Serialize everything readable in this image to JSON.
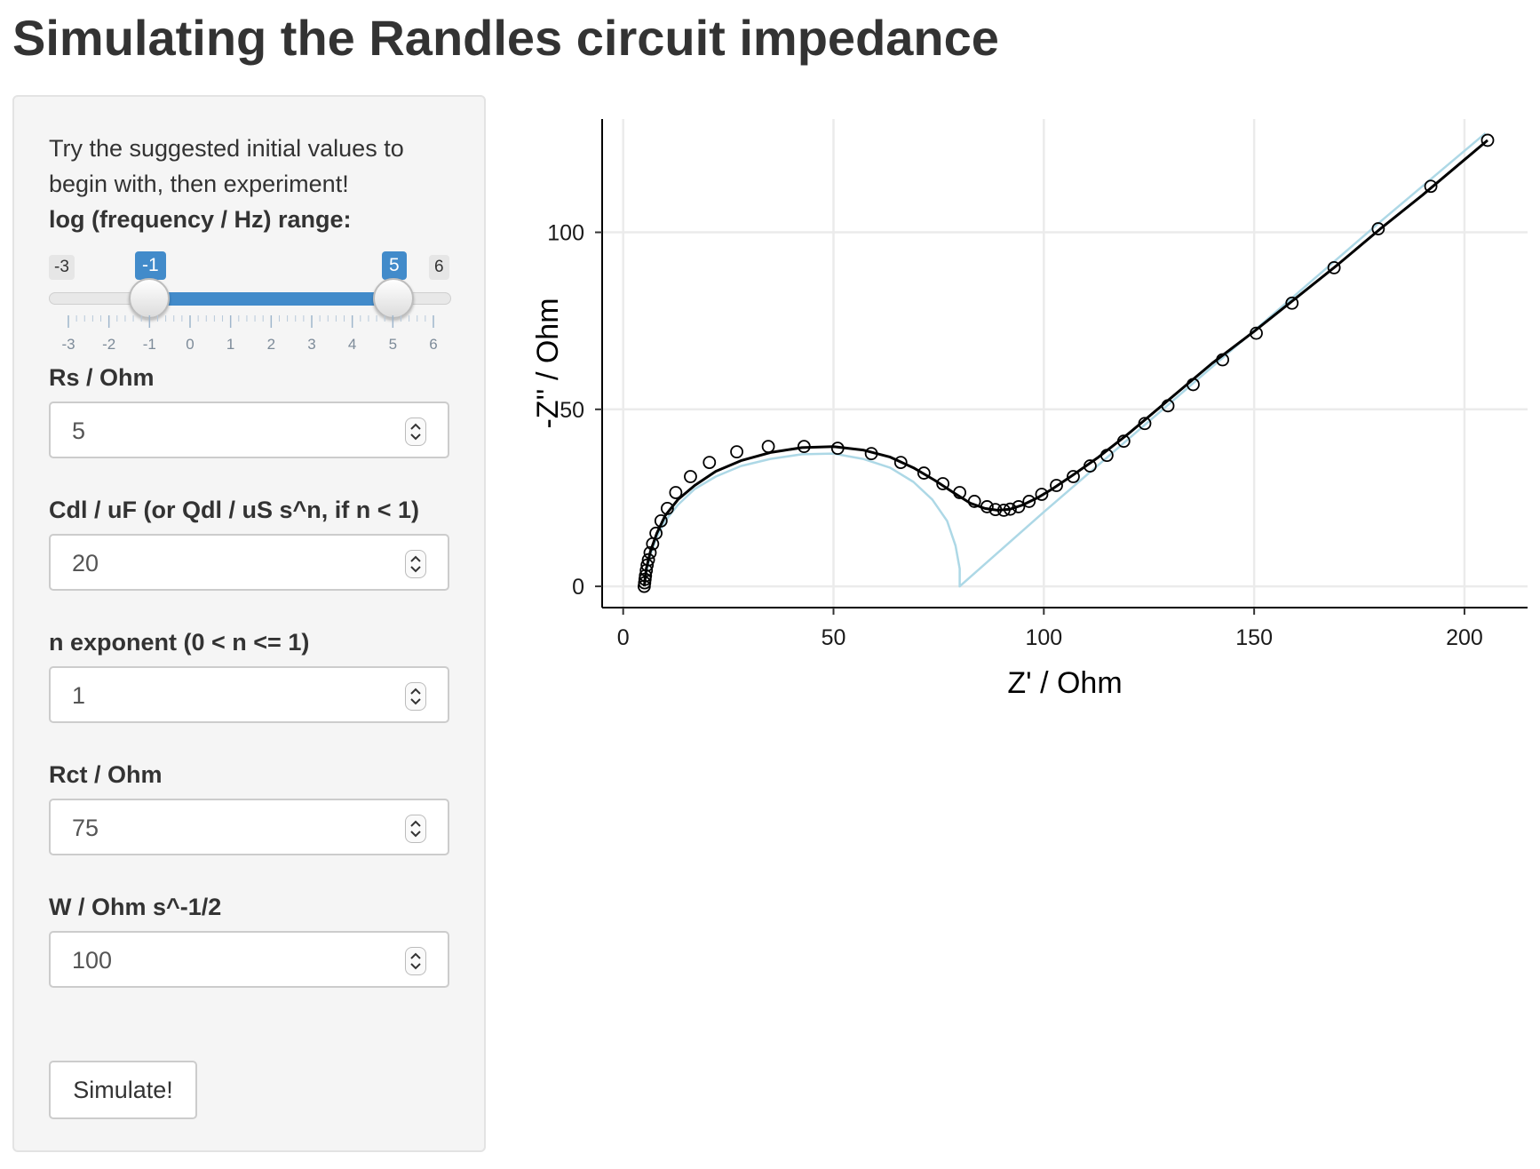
{
  "page_title": "Simulating the Randles circuit impedance",
  "sidebar": {
    "intro": "Try the suggested initial values to begin with, then experiment!",
    "slider": {
      "label": "log (frequency / Hz) range:",
      "min": -3,
      "max": 6,
      "from": -1,
      "to": 5,
      "min_label": "-3",
      "max_label": "6",
      "from_label": "-1",
      "to_label": "5",
      "ticks": [
        "-3",
        "-2",
        "-1",
        "0",
        "1",
        "2",
        "3",
        "4",
        "5",
        "6"
      ],
      "accent_color": "#428bca"
    },
    "inputs": [
      {
        "label": "Rs / Ohm",
        "value": "5"
      },
      {
        "label": "Cdl / uF (or Qdl / uS s^n, if n < 1)",
        "value": "20"
      },
      {
        "label": "n exponent (0 < n <= 1)",
        "value": "1"
      },
      {
        "label": "Rct / Ohm",
        "value": "75"
      },
      {
        "label": "W / Ohm s^-1/2",
        "value": "100"
      }
    ],
    "button_label": "Simulate!"
  },
  "chart_data": {
    "type": "scatter",
    "xlabel": "Z' / Ohm",
    "ylabel": "-Z'' / Ohm",
    "xlim": [
      -5,
      215
    ],
    "ylim": [
      -6,
      132
    ],
    "xticks": [
      0,
      50,
      100,
      150,
      200
    ],
    "yticks": [
      0,
      50,
      100
    ],
    "grid": true,
    "series": [
      {
        "style": "light-blue-line",
        "color": "#add8e6",
        "x": [
          5,
          5.5,
          6.5,
          8,
          10,
          13,
          17,
          22,
          28,
          35,
          42.5,
          50,
          57,
          63.5,
          69,
          73.5,
          77,
          79,
          80,
          80,
          100,
          120,
          140,
          160,
          180,
          205
        ],
        "y": [
          0,
          4,
          9,
          14,
          18.5,
          23,
          27.5,
          31,
          34,
          36,
          37.3,
          37.5,
          36,
          33.5,
          29.5,
          24.5,
          18.5,
          11.5,
          5,
          0,
          21,
          41.5,
          62,
          82.5,
          103,
          128
        ]
      },
      {
        "style": "black-line",
        "color": "#000000",
        "x": [
          5,
          5.5,
          6.5,
          8,
          10,
          13,
          17,
          22,
          28,
          35,
          42.5,
          50,
          57,
          63.5,
          69,
          74,
          78.5,
          82.5,
          86,
          89,
          92,
          95,
          98.5,
          102,
          107,
          113,
          120,
          130,
          140,
          150,
          160,
          170,
          180,
          190,
          205.5
        ],
        "y": [
          0,
          5,
          10,
          15,
          20,
          24.5,
          28.5,
          32.5,
          35.5,
          37.8,
          39.2,
          39.5,
          38.5,
          36.5,
          33.5,
          30,
          26.5,
          23.5,
          22,
          21.5,
          21.8,
          23,
          25,
          27.5,
          31.5,
          36.5,
          43,
          53,
          63,
          72,
          81.5,
          91,
          101,
          110.5,
          126
        ]
      },
      {
        "style": "open-circles",
        "color": "#000000",
        "x": [
          5,
          5.1,
          5.2,
          5.3,
          5.5,
          5.7,
          6,
          6.4,
          7,
          7.8,
          9,
          10.5,
          12.5,
          16,
          20.5,
          27,
          34.5,
          43,
          51,
          59,
          66,
          71.5,
          76,
          80,
          83.5,
          86.5,
          88.5,
          90.5,
          92,
          94,
          96.5,
          99.5,
          103,
          107,
          111,
          115,
          119,
          124,
          129.5,
          135.5,
          142.5,
          150.5,
          159,
          169,
          179.5,
          192,
          205.5
        ],
        "y": [
          0,
          1,
          2,
          3,
          4.5,
          6,
          7.5,
          9.5,
          12,
          15,
          18.5,
          22,
          26.5,
          31,
          35,
          38,
          39.5,
          39.5,
          39,
          37.5,
          35,
          32,
          29,
          26.5,
          24,
          22.5,
          21.7,
          21.5,
          21.8,
          22.5,
          24,
          26,
          28.5,
          31,
          34,
          37,
          41,
          46,
          51,
          57,
          64,
          71.5,
          80,
          90,
          101,
          113,
          126
        ]
      }
    ]
  }
}
